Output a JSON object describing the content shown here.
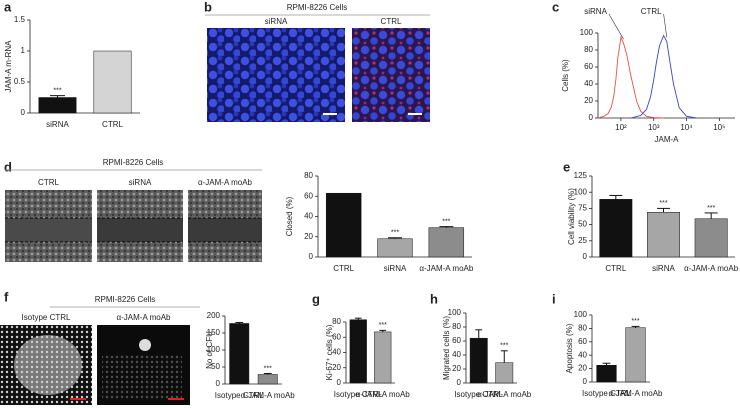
{
  "chart_data": [
    {
      "type": "bar",
      "panel": "a",
      "y_label": "JAM-A m-RNA",
      "categories": [
        "siRNA",
        "CTRL"
      ],
      "values": [
        0.25,
        1
      ],
      "errors": [
        0.03,
        0
      ],
      "colors": [
        "#111111",
        "#d4d4d4"
      ],
      "significance": [
        "***",
        null
      ],
      "ylim": [
        0,
        1.5
      ],
      "yticks": [
        0,
        0.5,
        1,
        1.5
      ]
    },
    {
      "type": "line",
      "panel": "c",
      "y_label": "Cells (%)",
      "x_label": "JAM-A",
      "log_x": true,
      "series": [
        {
          "name": "siRNA",
          "color": "#e8504a",
          "x": [
            20,
            30,
            40,
            50,
            60,
            70,
            80,
            100,
            120,
            150,
            200,
            300,
            400,
            600,
            1000,
            2000
          ],
          "values": [
            0,
            2,
            5,
            12,
            25,
            45,
            70,
            95,
            88,
            75,
            50,
            20,
            8,
            2,
            0.5,
            0
          ]
        },
        {
          "name": "CTRL",
          "color": "#3a46c8",
          "x": [
            200,
            400,
            600,
            800,
            1000,
            1200,
            1500,
            2000,
            2500,
            3000,
            4000,
            6000,
            10000,
            20000
          ],
          "values": [
            0,
            3,
            10,
            25,
            45,
            65,
            85,
            97,
            90,
            70,
            40,
            12,
            2,
            0
          ]
        }
      ],
      "xlim": [
        20,
        300000
      ],
      "xticks": [
        {
          "value": 100,
          "label": "10²"
        },
        {
          "value": 1000,
          "label": "10³"
        },
        {
          "value": 10000,
          "label": "10⁴"
        },
        {
          "value": 100000,
          "label": "10⁵"
        }
      ],
      "ylim": [
        0,
        100
      ],
      "yticks": [
        0,
        20,
        40,
        60,
        80,
        100
      ]
    },
    {
      "type": "bar",
      "y_label": "Closed (%)",
      "categories": [
        "CTRL",
        "siRNA",
        "α-JAM-A moAb"
      ],
      "values": [
        63,
        18,
        29
      ],
      "errors": [
        0,
        1,
        1
      ],
      "colors": [
        "#111111",
        "#a6a6a6",
        "#8c8c8c"
      ],
      "significance": [
        null,
        "***",
        "***"
      ],
      "ylim": [
        0,
        80
      ],
      "yticks": [
        0,
        20,
        40,
        60,
        80
      ]
    },
    {
      "type": "bar",
      "panel": "e",
      "y_label": "Cell viability (%)",
      "categories": [
        "CTRL",
        "siRNA",
        "α-JAM-A moAb"
      ],
      "values": [
        89,
        69,
        59
      ],
      "errors": [
        6,
        6,
        9
      ],
      "colors": [
        "#111111",
        "#a6a6a6",
        "#8c8c8c"
      ],
      "significance": [
        null,
        "***",
        "***"
      ],
      "ylim": [
        0,
        125
      ],
      "yticks": [
        0,
        25,
        50,
        75,
        100,
        125
      ]
    },
    {
      "type": "bar",
      "y_label": "No of CFU",
      "categories": [
        "Isotype CTRL",
        "α-JAM-A moAb"
      ],
      "values": [
        178,
        28
      ],
      "errors": [
        3,
        3
      ],
      "colors": [
        "#111111",
        "#8c8c8c"
      ],
      "significance": [
        null,
        "***"
      ],
      "ylim": [
        0,
        200
      ],
      "yticks": [
        0,
        50,
        100,
        150,
        200
      ]
    },
    {
      "type": "bar",
      "panel": "g",
      "y_label": "Ki-67⁺ cells (%)",
      "categories": [
        "Isotype CTRL",
        "α-JAM-A moAb"
      ],
      "values": [
        83,
        67
      ],
      "errors": [
        2,
        2
      ],
      "colors": [
        "#111111",
        "#a6a6a6"
      ],
      "significance": [
        null,
        "***"
      ],
      "ylim": [
        0,
        80
      ],
      "yticks": [
        0,
        20,
        40,
        60,
        80
      ]
    },
    {
      "type": "bar",
      "panel": "h",
      "y_label": "Migrated cells (%)",
      "categories": [
        "Isotype CTRL",
        "α-JAM-A moAb"
      ],
      "values": [
        64,
        29
      ],
      "errors": [
        12,
        17
      ],
      "colors": [
        "#111111",
        "#a6a6a6"
      ],
      "significance": [
        null,
        "***"
      ],
      "ylim": [
        0,
        100
      ],
      "yticks": [
        0,
        20,
        40,
        60,
        80,
        100
      ]
    },
    {
      "type": "bar",
      "panel": "i",
      "y_label": "Apoptosis (%)",
      "categories": [
        "Isotype CTRL",
        "α-JAM-A moAb"
      ],
      "values": [
        25,
        81
      ],
      "errors": [
        3,
        2
      ],
      "colors": [
        "#111111",
        "#a6a6a6"
      ],
      "significance": [
        null,
        "***"
      ],
      "ylim": [
        0,
        100
      ],
      "yticks": [
        0,
        20,
        40,
        60,
        80,
        100
      ]
    }
  ],
  "image_panels": [
    {
      "panel": "b",
      "title": "RPMI-8226 Cells",
      "labels": [
        "siRNA",
        "CTRL"
      ]
    },
    {
      "panel": "d",
      "title": "RPMI-8226 Cells",
      "labels": [
        "CTRL",
        "siRNA",
        "α-JAM-A moAb"
      ]
    },
    {
      "panel": "f",
      "title": "RPMI-8226 Cells",
      "labels": [
        "Isotype CTRL",
        "α-JAM-A moAb"
      ]
    }
  ]
}
